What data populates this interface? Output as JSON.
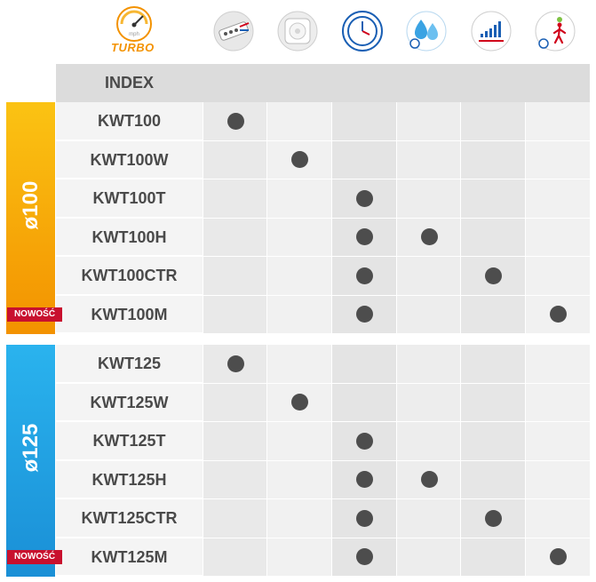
{
  "header": {
    "turbo_label": "TURBO",
    "index_label": "INDEX",
    "icons": [
      "turbo-gauge-icon",
      "fan-speed-switch-icon",
      "white-fan-icon",
      "timer-clock-icon",
      "humidity-drops-icon",
      "control-level-icon",
      "motion-sensor-icon"
    ]
  },
  "columns": [
    "speed-switch",
    "white",
    "timer",
    "humidity",
    "control",
    "motion"
  ],
  "groups": [
    {
      "label": "ø100",
      "color": "#f7a100",
      "rows": [
        {
          "name": "KWT100",
          "features": [
            1,
            0,
            0,
            0,
            0,
            0
          ],
          "badge": ""
        },
        {
          "name": "KWT100W",
          "features": [
            0,
            1,
            0,
            0,
            0,
            0
          ],
          "badge": ""
        },
        {
          "name": "KWT100T",
          "features": [
            0,
            0,
            1,
            0,
            0,
            0
          ],
          "badge": ""
        },
        {
          "name": "KWT100H",
          "features": [
            0,
            0,
            1,
            1,
            0,
            0
          ],
          "badge": ""
        },
        {
          "name": "KWT100CTR",
          "features": [
            0,
            0,
            1,
            0,
            1,
            0
          ],
          "badge": ""
        },
        {
          "name": "KWT100M",
          "features": [
            0,
            0,
            1,
            0,
            0,
            1
          ],
          "badge": "NOWOŚĆ"
        }
      ]
    },
    {
      "label": "ø125",
      "color": "#1aa0e2",
      "rows": [
        {
          "name": "KWT125",
          "features": [
            1,
            0,
            0,
            0,
            0,
            0
          ],
          "badge": ""
        },
        {
          "name": "KWT125W",
          "features": [
            0,
            1,
            0,
            0,
            0,
            0
          ],
          "badge": ""
        },
        {
          "name": "KWT125T",
          "features": [
            0,
            0,
            1,
            0,
            0,
            0
          ],
          "badge": ""
        },
        {
          "name": "KWT125H",
          "features": [
            0,
            0,
            1,
            1,
            0,
            0
          ],
          "badge": ""
        },
        {
          "name": "KWT125CTR",
          "features": [
            0,
            0,
            1,
            0,
            1,
            0
          ],
          "badge": ""
        },
        {
          "name": "KWT125M",
          "features": [
            0,
            0,
            1,
            0,
            0,
            1
          ],
          "badge": "NOWOŚĆ"
        }
      ]
    }
  ]
}
